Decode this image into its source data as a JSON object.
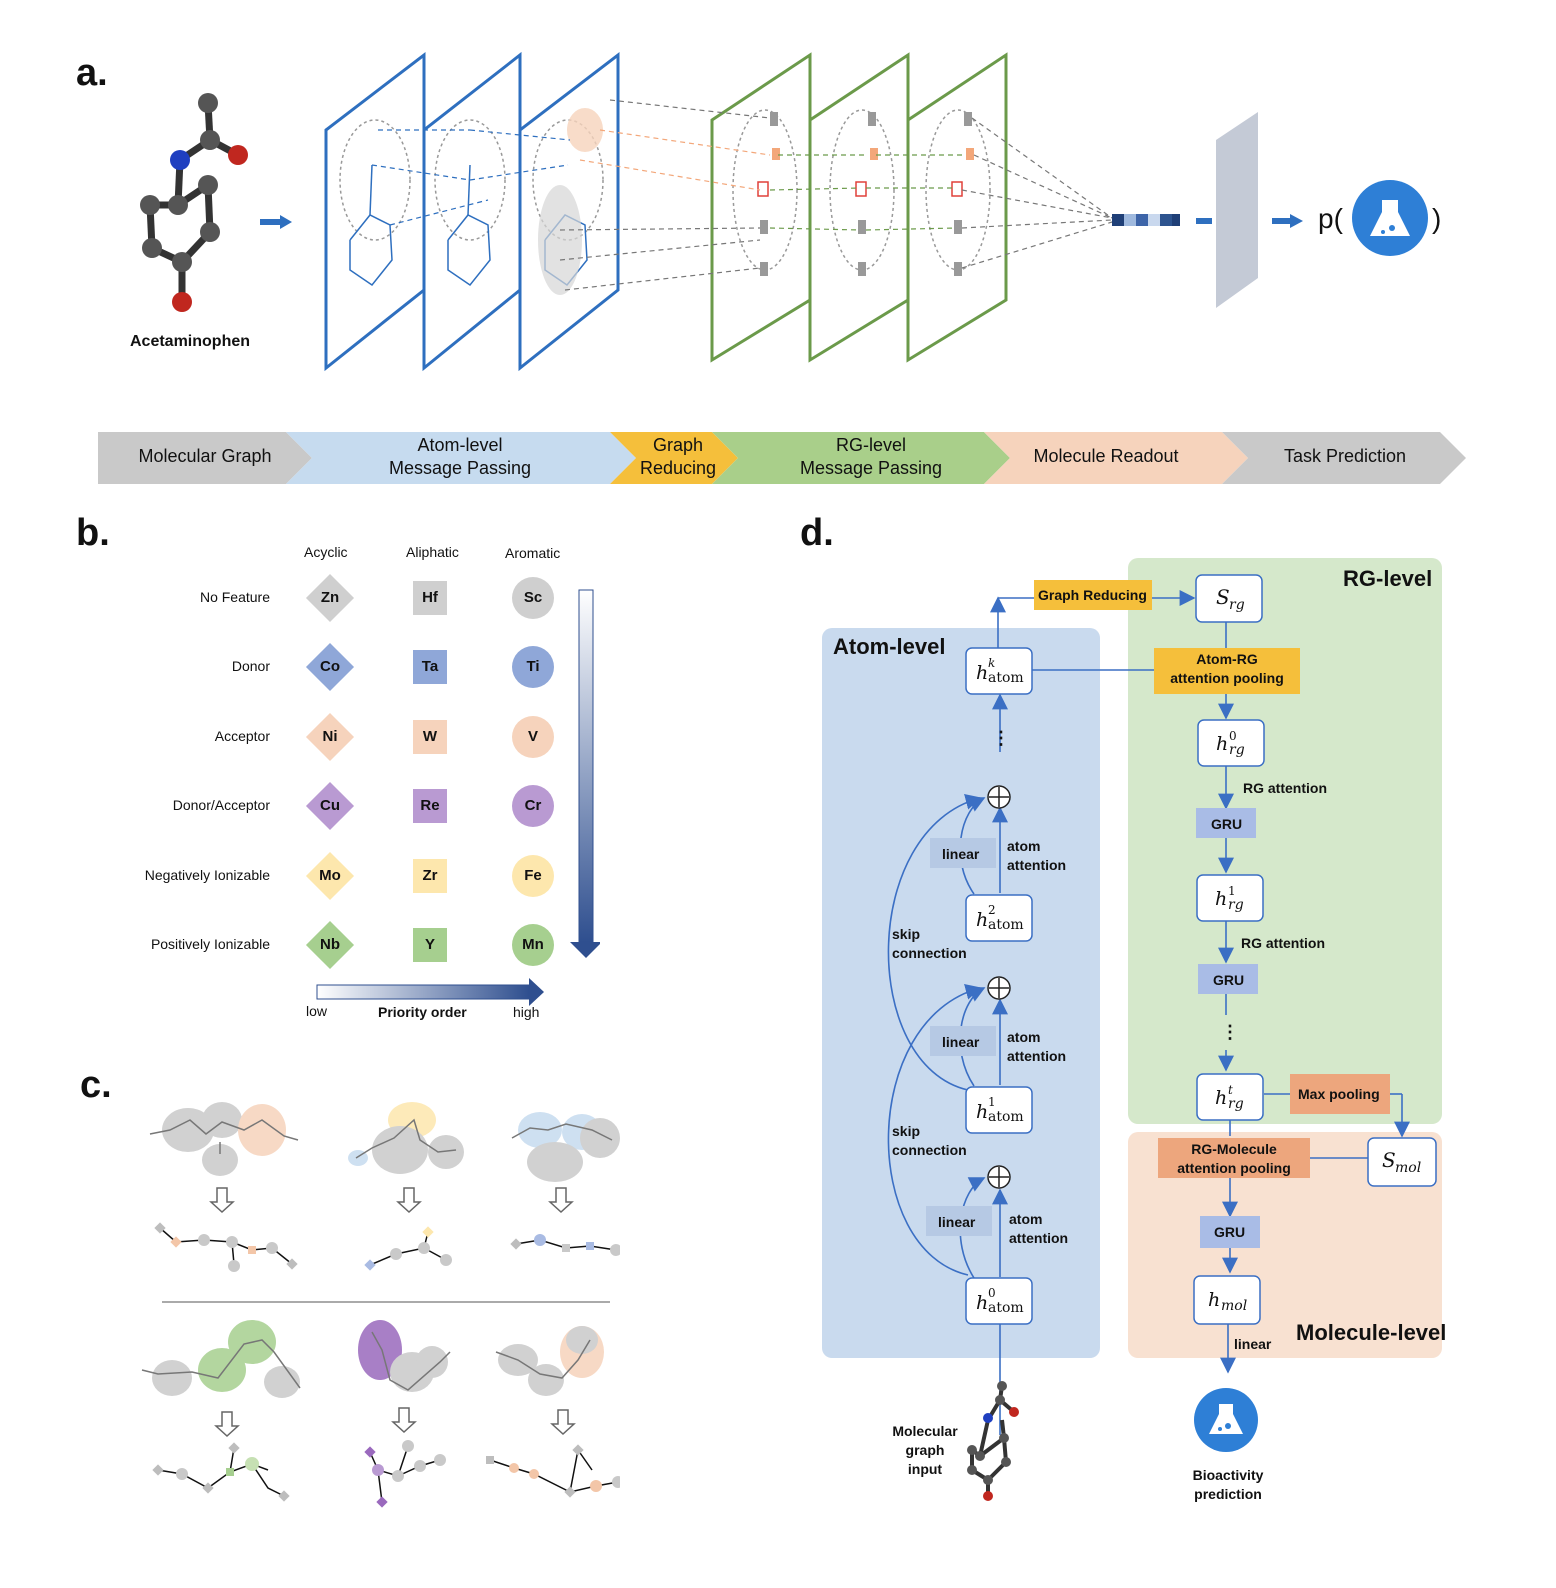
{
  "panels": {
    "a": "a.",
    "b": "b.",
    "c": "c.",
    "d": "d."
  },
  "panel_a": {
    "molecule_label": "Acetaminophen",
    "prediction_prefix": "p(",
    "prediction_suffix": ")",
    "pipeline": [
      {
        "line1": "Molecular Graph",
        "line2": "",
        "color": "#c9c9c9"
      },
      {
        "line1": "Atom-level",
        "line2": "Message Passing",
        "color": "#c6dbef"
      },
      {
        "line1": "Graph",
        "line2": "Reducing",
        "color": "#f5bf3b"
      },
      {
        "line1": "RG-level",
        "line2": "Message Passing",
        "color": "#a9cf8a"
      },
      {
        "line1": "Molecule Readout",
        "line2": "",
        "color": "#f6d3bc"
      },
      {
        "line1": "Task Prediction",
        "line2": "",
        "color": "#c9c9c9"
      }
    ]
  },
  "panel_b": {
    "columns": [
      "Acyclic",
      "Aliphatic",
      "Aromatic"
    ],
    "rows": [
      {
        "label": "No Feature",
        "color": "#cfcfcf",
        "symbols": [
          "Zn",
          "Hf",
          "Sc"
        ]
      },
      {
        "label": "Donor",
        "color": "#8fa7d8",
        "symbols": [
          "Co",
          "Ta",
          "Ti"
        ]
      },
      {
        "label": "Acceptor",
        "color": "#f6d3bc",
        "symbols": [
          "Ni",
          "W",
          "V"
        ]
      },
      {
        "label": "Donor/Acceptor",
        "color": "#b99ad2",
        "symbols": [
          "Cu",
          "Re",
          "Cr"
        ]
      },
      {
        "label": "Negatively Ionizable",
        "color": "#fde7ad",
        "symbols": [
          "Mo",
          "Zr",
          "Fe"
        ]
      },
      {
        "label": "Positively Ionizable",
        "color": "#a6cf8f",
        "symbols": [
          "Nb",
          "Y",
          "Mn"
        ]
      }
    ],
    "priority": {
      "low": "low",
      "title": "Priority order",
      "high": "high"
    }
  },
  "panel_d": {
    "atom_level_title": "Atom-level",
    "rg_level_title": "RG-level",
    "molecule_level_title": "Molecule-level",
    "graph_reducing": "Graph Reducing",
    "atom_rg_pool": [
      "Atom-RG",
      "attention pooling"
    ],
    "rg_mol_pool": [
      "RG-Molecule",
      "attention pooling"
    ],
    "max_pooling": "Max pooling",
    "gru": "GRU",
    "linear": "linear",
    "atom_attention": [
      "atom",
      "attention"
    ],
    "skip_connection": [
      "skip",
      "connection"
    ],
    "rg_attention": "RG attention",
    "input_label": [
      "Molecular",
      "graph",
      "input"
    ],
    "output_label": [
      "Bioactivity",
      "prediction"
    ],
    "vdots": "⋮"
  }
}
